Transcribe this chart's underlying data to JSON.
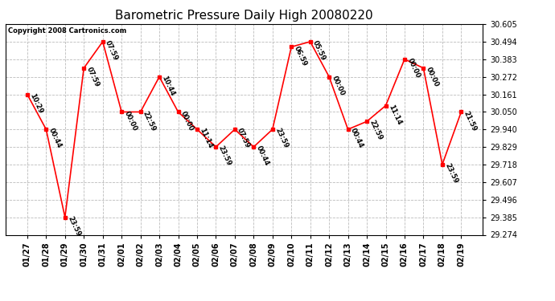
{
  "title": "Barometric Pressure Daily High 20080220",
  "copyright": "Copyright 2008 Cartronics.com",
  "x_labels": [
    "01/27",
    "01/28",
    "01/29",
    "01/30",
    "01/31",
    "02/01",
    "02/02",
    "02/03",
    "02/04",
    "02/05",
    "02/06",
    "02/07",
    "02/08",
    "02/09",
    "02/10",
    "02/11",
    "02/12",
    "02/13",
    "02/14",
    "02/15",
    "02/16",
    "02/17",
    "02/18",
    "02/19"
  ],
  "y_values": [
    30.161,
    29.94,
    29.385,
    30.327,
    30.494,
    30.05,
    30.05,
    30.272,
    30.05,
    29.94,
    29.829,
    29.94,
    29.829,
    29.94,
    30.461,
    30.494,
    30.272,
    29.94,
    29.99,
    30.09,
    30.383,
    30.327,
    29.718,
    30.05
  ],
  "point_labels": [
    "10:29",
    "00:44",
    "23:59",
    "07:59",
    "07:59",
    "00:00",
    "22:59",
    "10:44",
    "00:00",
    "11:14",
    "23:59",
    "07:59",
    "00:44",
    "23:59",
    "06:59",
    "05:59",
    "00:00",
    "00:44",
    "22:59",
    "11:14",
    "00:00",
    "00:00",
    "23:59",
    "21:59"
  ],
  "y_min": 29.274,
  "y_max": 30.605,
  "y_ticks": [
    29.274,
    29.385,
    29.496,
    29.607,
    29.718,
    29.829,
    29.94,
    30.05,
    30.161,
    30.272,
    30.383,
    30.494,
    30.605
  ],
  "line_color": "red",
  "marker_color": "red",
  "bg_color": "white",
  "grid_color": "#bbbbbb",
  "title_fontsize": 11,
  "label_fontsize": 6,
  "tick_fontsize": 7,
  "copyright_fontsize": 6
}
